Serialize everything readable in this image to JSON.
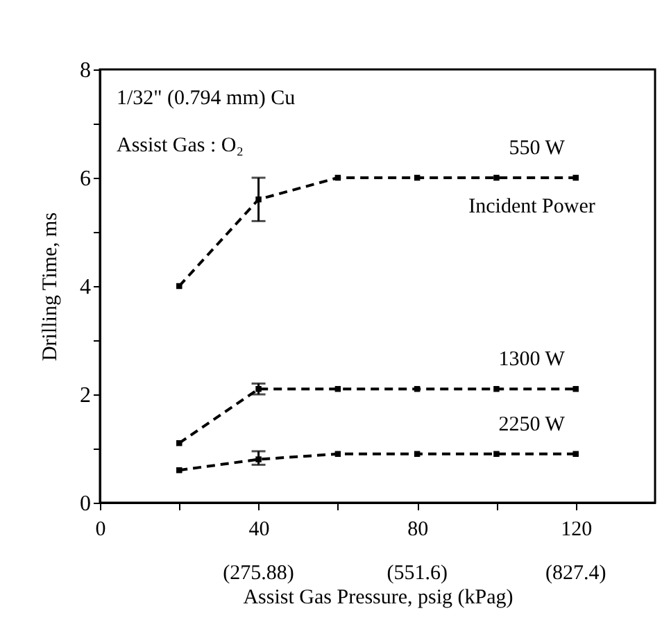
{
  "chart_data": {
    "type": "line",
    "xlabel": "Assist Gas Pressure, psig (kPag)",
    "ylabel": "Drilling Time, ms",
    "x": [
      20,
      40,
      60,
      80,
      100,
      120
    ],
    "series": [
      {
        "name": "550 W",
        "color": "#000000",
        "values": [
          4.0,
          5.6,
          6.0,
          6.0,
          6.0,
          6.0
        ],
        "errors": [
          null,
          [
            5.2,
            6.0
          ],
          null,
          null,
          null,
          null
        ]
      },
      {
        "name": "1300 W",
        "color": "#000000",
        "values": [
          1.1,
          2.1,
          2.1,
          2.1,
          2.1,
          2.1
        ],
        "errors": [
          null,
          [
            2.0,
            2.2
          ],
          null,
          null,
          null,
          null
        ]
      },
      {
        "name": "2250 W",
        "color": "#000000",
        "values": [
          0.6,
          0.8,
          0.9,
          0.9,
          0.9,
          0.9
        ],
        "errors": [
          null,
          [
            0.7,
            0.95
          ],
          null,
          null,
          null,
          null
        ]
      }
    ],
    "annotations": [
      "1/32\" (0.794 mm) Cu",
      "Assist Gas : O₂",
      "Incident Power",
      "(275.88)",
      "(551.6)",
      "(827.4)"
    ],
    "xlim": [
      0,
      140
    ],
    "xticks": [
      0,
      {
        "value": 20,
        "label": null
      },
      40,
      {
        "value": 60,
        "label": null
      },
      80,
      {
        "value": 100,
        "label": null
      },
      120
    ],
    "ylim": [
      0,
      8
    ],
    "yticks": [
      0,
      {
        "value": 1,
        "label": null
      },
      2,
      {
        "value": 3,
        "label": null
      },
      4,
      {
        "value": 5,
        "label": null
      },
      6,
      {
        "value": 7,
        "label": null
      },
      8
    ],
    "grid": false,
    "legend": false,
    "marker": "square",
    "line_style": "dashed"
  }
}
